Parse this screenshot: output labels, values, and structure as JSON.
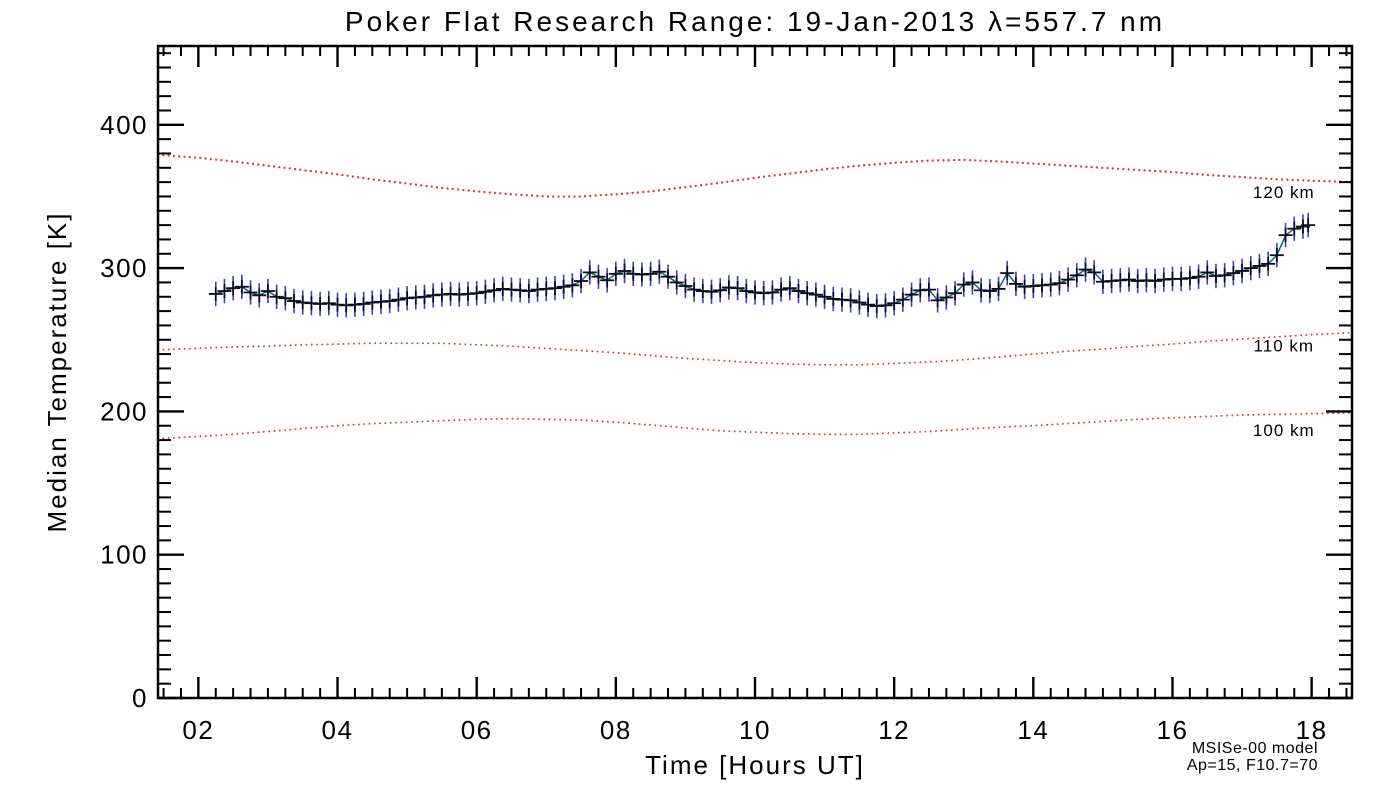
{
  "title": "Poker Flat Research Range: 19-Jan-2013 λ=557.7 nm",
  "colors": {
    "axis": "#000000",
    "model_red": "#e23a3a",
    "error_blue": "#3c3ccd",
    "marker_dark": "#0a0a28",
    "line_teal": "#1d6672"
  },
  "annotations": {
    "model_name": "MSISe-00 model",
    "model_params": "Ap=15, F10.7=70"
  },
  "chart_data": {
    "type": "line",
    "title": "Poker Flat Research Range: 19-Jan-2013 λ=557.7 nm",
    "xlabel": "Time [Hours UT]",
    "ylabel": "Median Temperature [K]",
    "xlim": [
      1.42,
      18.58
    ],
    "ylim": [
      0,
      455
    ],
    "grid": false,
    "x_major_ticks": [
      2,
      4,
      6,
      8,
      10,
      12,
      14,
      16,
      18
    ],
    "x_tick_labels": [
      "02",
      "04",
      "06",
      "08",
      "10",
      "12",
      "14",
      "16",
      "18"
    ],
    "x_minor_step": 0.25,
    "y_major_ticks": [
      0,
      100,
      200,
      300,
      400
    ],
    "y_tick_labels": [
      "0",
      "100",
      "200",
      "300",
      "400"
    ],
    "y_minor_step": 10,
    "series": [
      {
        "name": "median_temperature",
        "marker": "plus",
        "error_k": 8.5,
        "points": [
          [
            2.25,
            282
          ],
          [
            2.375,
            284
          ],
          [
            2.5,
            286
          ],
          [
            2.625,
            287
          ],
          [
            2.75,
            283
          ],
          [
            2.875,
            281
          ],
          [
            3.0,
            284
          ],
          [
            3.125,
            280
          ],
          [
            3.25,
            279
          ],
          [
            3.375,
            277
          ],
          [
            3.5,
            276
          ],
          [
            3.625,
            275.5
          ],
          [
            3.75,
            275
          ],
          [
            3.875,
            275.5
          ],
          [
            4.0,
            274.5
          ],
          [
            4.125,
            274
          ],
          [
            4.25,
            274.5
          ],
          [
            4.375,
            275
          ],
          [
            4.5,
            276
          ],
          [
            4.625,
            276.5
          ],
          [
            4.75,
            277
          ],
          [
            4.875,
            278
          ],
          [
            5.0,
            279
          ],
          [
            5.125,
            279.5
          ],
          [
            5.25,
            280
          ],
          [
            5.375,
            281
          ],
          [
            5.5,
            281.5
          ],
          [
            5.625,
            282
          ],
          [
            5.75,
            281.5
          ],
          [
            5.875,
            282
          ],
          [
            6.0,
            282.5
          ],
          [
            6.125,
            283.5
          ],
          [
            6.25,
            284.5
          ],
          [
            6.375,
            285.5
          ],
          [
            6.5,
            285
          ],
          [
            6.625,
            284.5
          ],
          [
            6.75,
            284
          ],
          [
            6.875,
            285
          ],
          [
            7.0,
            285.5
          ],
          [
            7.125,
            286
          ],
          [
            7.25,
            287
          ],
          [
            7.375,
            288
          ],
          [
            7.5,
            291
          ],
          [
            7.625,
            297
          ],
          [
            7.75,
            294
          ],
          [
            7.875,
            291.5
          ],
          [
            8.0,
            296
          ],
          [
            8.125,
            298
          ],
          [
            8.25,
            296
          ],
          [
            8.375,
            295.5
          ],
          [
            8.5,
            296
          ],
          [
            8.625,
            297.5
          ],
          [
            8.75,
            294
          ],
          [
            8.875,
            290
          ],
          [
            9.0,
            287.5
          ],
          [
            9.125,
            285
          ],
          [
            9.25,
            284
          ],
          [
            9.375,
            283.5
          ],
          [
            9.5,
            284.5
          ],
          [
            9.625,
            286.5
          ],
          [
            9.75,
            286
          ],
          [
            9.875,
            284
          ],
          [
            10.0,
            283
          ],
          [
            10.125,
            282.5
          ],
          [
            10.25,
            283
          ],
          [
            10.375,
            285
          ],
          [
            10.5,
            286
          ],
          [
            10.625,
            284
          ],
          [
            10.75,
            282.5
          ],
          [
            10.875,
            281.5
          ],
          [
            11.0,
            280
          ],
          [
            11.125,
            278.5
          ],
          [
            11.25,
            278
          ],
          [
            11.375,
            277.5
          ],
          [
            11.5,
            276
          ],
          [
            11.625,
            274.5
          ],
          [
            11.75,
            273.5
          ],
          [
            11.875,
            274
          ],
          [
            12.0,
            275.5
          ],
          [
            12.125,
            278
          ],
          [
            12.25,
            281.5
          ],
          [
            12.375,
            284.5
          ],
          [
            12.5,
            285
          ],
          [
            12.625,
            277.5
          ],
          [
            12.75,
            279.5
          ],
          [
            12.875,
            282.5
          ],
          [
            13.0,
            288.5
          ],
          [
            13.125,
            290
          ],
          [
            13.25,
            284.5
          ],
          [
            13.375,
            284
          ],
          [
            13.5,
            285.5
          ],
          [
            13.625,
            296.5
          ],
          [
            13.75,
            289
          ],
          [
            13.875,
            287
          ],
          [
            14.0,
            287.5
          ],
          [
            14.125,
            288
          ],
          [
            14.25,
            288.5
          ],
          [
            14.375,
            289.5
          ],
          [
            14.5,
            292
          ],
          [
            14.625,
            295
          ],
          [
            14.75,
            299
          ],
          [
            14.875,
            297
          ],
          [
            15.0,
            290.5
          ],
          [
            15.125,
            291
          ],
          [
            15.25,
            291.5
          ],
          [
            15.375,
            292
          ],
          [
            15.5,
            291
          ],
          [
            15.625,
            291.5
          ],
          [
            15.75,
            291
          ],
          [
            15.875,
            292
          ],
          [
            16.0,
            292.5
          ],
          [
            16.125,
            292.5
          ],
          [
            16.25,
            293
          ],
          [
            16.375,
            294
          ],
          [
            16.5,
            297
          ],
          [
            16.625,
            294.5
          ],
          [
            16.75,
            295
          ],
          [
            16.875,
            296.5
          ],
          [
            17.0,
            298
          ],
          [
            17.125,
            300
          ],
          [
            17.25,
            301.5
          ],
          [
            17.375,
            303
          ],
          [
            17.5,
            309
          ],
          [
            17.625,
            323
          ],
          [
            17.75,
            327.5
          ],
          [
            17.875,
            329
          ],
          [
            17.95,
            330
          ]
        ]
      }
    ],
    "model_curves": [
      {
        "name": "msis_120km",
        "label": "120 km",
        "label_pos": [
          17.6,
          353
        ],
        "points": [
          [
            1.42,
            379
          ],
          [
            2,
            377
          ],
          [
            2.5,
            374.5
          ],
          [
            3,
            371.5
          ],
          [
            3.5,
            368.5
          ],
          [
            4,
            365.5
          ],
          [
            4.5,
            362
          ],
          [
            5,
            359
          ],
          [
            5.5,
            356
          ],
          [
            6,
            353.5
          ],
          [
            6.5,
            351.5
          ],
          [
            7,
            350
          ],
          [
            7.5,
            350
          ],
          [
            8,
            351.5
          ],
          [
            8.5,
            353.5
          ],
          [
            9,
            356.5
          ],
          [
            9.5,
            359.5
          ],
          [
            10,
            363
          ],
          [
            10.5,
            366
          ],
          [
            11,
            369
          ],
          [
            11.5,
            371.5
          ],
          [
            12,
            373.5
          ],
          [
            12.5,
            375
          ],
          [
            13,
            375.5
          ],
          [
            13.5,
            374.5
          ],
          [
            14,
            373
          ],
          [
            14.5,
            371.5
          ],
          [
            15,
            370
          ],
          [
            15.5,
            368.5
          ],
          [
            16,
            367
          ],
          [
            16.5,
            365
          ],
          [
            17,
            363.5
          ],
          [
            17.5,
            362
          ],
          [
            18,
            361
          ],
          [
            18.58,
            360
          ]
        ]
      },
      {
        "name": "msis_110km",
        "label": "110 km",
        "label_pos": [
          17.6,
          246
        ],
        "points": [
          [
            1.42,
            243
          ],
          [
            2,
            244
          ],
          [
            2.5,
            245
          ],
          [
            3,
            245.5
          ],
          [
            3.5,
            246.5
          ],
          [
            4,
            247
          ],
          [
            4.5,
            247.5
          ],
          [
            5,
            247.5
          ],
          [
            5.5,
            247.5
          ],
          [
            6,
            246.5
          ],
          [
            6.5,
            245.5
          ],
          [
            7,
            244
          ],
          [
            7.5,
            242.5
          ],
          [
            8,
            241
          ],
          [
            8.5,
            239
          ],
          [
            9,
            237
          ],
          [
            9.5,
            235.5
          ],
          [
            10,
            234
          ],
          [
            10.5,
            233
          ],
          [
            11,
            232.5
          ],
          [
            11.5,
            232.5
          ],
          [
            12,
            233.5
          ],
          [
            12.5,
            234.5
          ],
          [
            13,
            236
          ],
          [
            13.5,
            238
          ],
          [
            14,
            240
          ],
          [
            14.5,
            242
          ],
          [
            15,
            243.5
          ],
          [
            15.5,
            245.5
          ],
          [
            16,
            247
          ],
          [
            16.5,
            249
          ],
          [
            17,
            250.5
          ],
          [
            17.5,
            252
          ],
          [
            18,
            253.5
          ],
          [
            18.58,
            255
          ]
        ]
      },
      {
        "name": "msis_100km",
        "label": "100 km",
        "label_pos": [
          17.6,
          187
        ],
        "points": [
          [
            1.42,
            181
          ],
          [
            2,
            182.5
          ],
          [
            2.5,
            184
          ],
          [
            3,
            186
          ],
          [
            3.5,
            188
          ],
          [
            4,
            190
          ],
          [
            4.5,
            191.5
          ],
          [
            5,
            192.5
          ],
          [
            5.5,
            193.5
          ],
          [
            6,
            194.5
          ],
          [
            6.5,
            195
          ],
          [
            7,
            194.5
          ],
          [
            7.5,
            194
          ],
          [
            8,
            192.5
          ],
          [
            8.5,
            190.5
          ],
          [
            9,
            188.5
          ],
          [
            9.5,
            186.5
          ],
          [
            10,
            185.5
          ],
          [
            10.5,
            184.5
          ],
          [
            11,
            184
          ],
          [
            11.5,
            184
          ],
          [
            12,
            185
          ],
          [
            12.5,
            186
          ],
          [
            13,
            187.5
          ],
          [
            13.5,
            189
          ],
          [
            14,
            190
          ],
          [
            14.5,
            191.5
          ],
          [
            15,
            193
          ],
          [
            15.5,
            194.5
          ],
          [
            16,
            195.5
          ],
          [
            16.5,
            196.5
          ],
          [
            17,
            197.5
          ],
          [
            17.5,
            198
          ],
          [
            18,
            198.5
          ],
          [
            18.58,
            199
          ]
        ]
      }
    ],
    "legend_position": "none",
    "model_annotation_lines": [
      "MSISe-00 model",
      "Ap=15, F10.7=70"
    ]
  }
}
